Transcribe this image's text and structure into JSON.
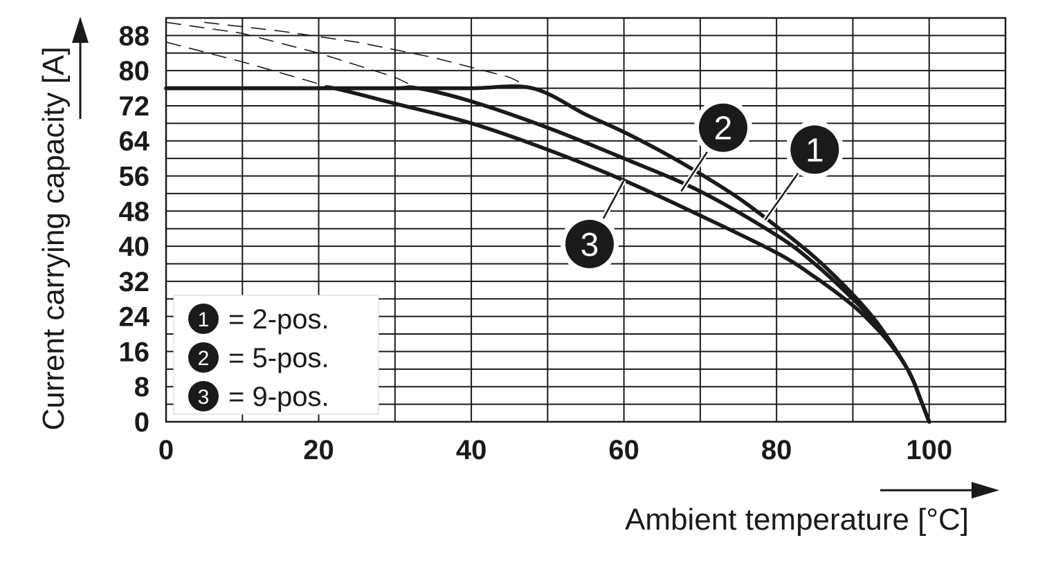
{
  "chart_data": {
    "type": "line",
    "title": "",
    "xlabel": "Ambient temperature [°C]",
    "ylabel": "Current carrying capacity [A]",
    "xlim": [
      0,
      110
    ],
    "ylim": [
      0,
      92
    ],
    "x_ticks": [
      0,
      20,
      40,
      60,
      80,
      100
    ],
    "x_tick_labels": [
      "0",
      "20",
      "40",
      "60",
      "80",
      "100"
    ],
    "y_ticks": [
      0,
      8,
      16,
      24,
      32,
      40,
      48,
      56,
      64,
      72,
      80,
      88
    ],
    "y_tick_labels": [
      "0",
      "8",
      "16",
      "24",
      "32",
      "40",
      "48",
      "56",
      "64",
      "72",
      "80",
      "88"
    ],
    "grid": true,
    "series": [
      {
        "name": "1",
        "limit": 76,
        "x": [
          0,
          10,
          20,
          30,
          40,
          48,
          55,
          60,
          65,
          70,
          75,
          80,
          85,
          90,
          93,
          95,
          97,
          98,
          99,
          100
        ],
        "y": [
          76,
          76,
          76,
          76,
          76,
          76,
          70,
          66,
          61.5,
          56.5,
          51,
          44.5,
          37.5,
          29,
          23,
          18,
          12.5,
          9,
          4.5,
          0
        ],
        "dashed_x": [
          5,
          15,
          25,
          35,
          45,
          48
        ],
        "dashed_y": [
          91,
          89,
          86.5,
          83,
          78.5,
          76
        ]
      },
      {
        "name": "2",
        "limit": 76,
        "x": [
          0,
          10,
          20,
          30,
          33,
          40,
          50,
          60,
          70,
          80,
          85,
          90,
          93,
          95,
          97,
          98,
          99,
          100
        ],
        "y": [
          76,
          76,
          76,
          76,
          76,
          73,
          67,
          60,
          52.5,
          42.5,
          36,
          28,
          22.5,
          18,
          12.5,
          9,
          4.5,
          0
        ],
        "dashed_x": [
          0,
          10,
          20,
          30,
          33
        ],
        "dashed_y": [
          91,
          88.5,
          84,
          78.5,
          76
        ]
      },
      {
        "name": "3",
        "limit": 76,
        "x": [
          0,
          10,
          20,
          22,
          30,
          40,
          50,
          60,
          70,
          80,
          85,
          90,
          93,
          95,
          97,
          98,
          99,
          100
        ],
        "y": [
          76,
          76,
          76,
          76,
          72.5,
          68,
          62,
          55,
          47,
          38.5,
          33,
          26.5,
          21.5,
          17.5,
          12.5,
          9,
          4.5,
          0
        ],
        "dashed_x": [
          0,
          10,
          20,
          22
        ],
        "dashed_y": [
          86.5,
          82,
          77,
          76
        ]
      }
    ],
    "legend": {
      "placement": "bottom-left",
      "entries": [
        {
          "badge": "1",
          "text": "= 2-pos."
        },
        {
          "badge": "2",
          "text": "= 5-pos."
        },
        {
          "badge": "3",
          "text": "= 9-pos."
        }
      ]
    },
    "callouts": [
      {
        "label": "2",
        "anchor_x": 67.5,
        "anchor_y": 52.5,
        "badge_x": 73,
        "badge_y": 67
      },
      {
        "label": "1",
        "anchor_x": 78.5,
        "anchor_y": 46,
        "badge_x": 85,
        "badge_y": 62
      },
      {
        "label": "3",
        "anchor_x": 60,
        "anchor_y": 55,
        "badge_x": 55.5,
        "badge_y": 40.5
      }
    ]
  }
}
